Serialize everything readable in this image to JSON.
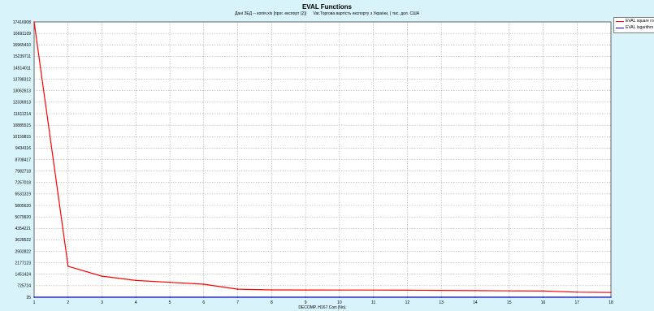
{
  "chart_data": {
    "type": "line",
    "title": "EVAL Functions",
    "subtitle_left": "Дані ЗЕД -- копія.xls [прог. експорт (2)]",
    "subtitle_right": "Var.Торгова вартість експорту з України, ( тис. дол. США",
    "xlabel": "DECOMP. H167.Corr.(No).",
    "x": [
      1,
      2,
      3,
      4,
      5,
      6,
      7,
      8,
      9,
      10,
      11,
      12,
      13,
      14,
      15,
      16,
      17,
      18
    ],
    "xlim": [
      1,
      18
    ],
    "ylim": [
      25,
      17416908
    ],
    "y_ticks": [
      "17416908",
      "16691109",
      "15965410",
      "15239711",
      "14514011",
      "13788312",
      "13062613",
      "12336913",
      "11611214",
      "10885515",
      "10159815",
      "9434116",
      "8708417",
      "7982718",
      "7257018",
      "6531319",
      "5805620",
      "5079920",
      "4354221",
      "3628522",
      "2902822",
      "2177123",
      "1451424",
      "725724",
      "25"
    ],
    "grid": true,
    "legend_position": "right",
    "series": [
      {
        "name": "EVAL square ro",
        "color": "#ff0000",
        "values": [
          17416908,
          1960000,
          1330000,
          1060000,
          940000,
          820000,
          510000,
          460000,
          455000,
          450000,
          450000,
          440000,
          430000,
          415000,
          400000,
          390000,
          320000,
          300000
        ]
      },
      {
        "name": "EVAL logarithm",
        "color": "#0000ff",
        "values": [
          30,
          30,
          30,
          30,
          30,
          30,
          30,
          30,
          30,
          30,
          30,
          30,
          30,
          30,
          30,
          30,
          30,
          30
        ]
      }
    ]
  }
}
